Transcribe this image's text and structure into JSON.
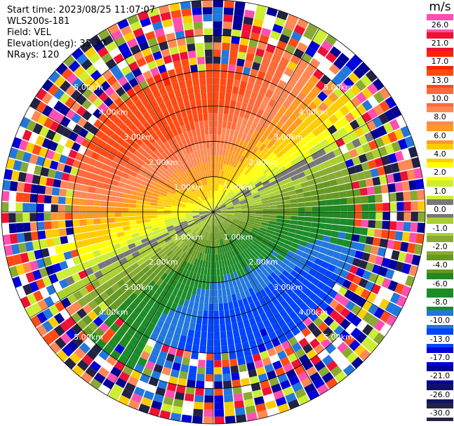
{
  "header": {
    "start_time": "Start time: 2023/08/25 11:07:07",
    "instrument": "WLS200s-181",
    "field": "Field: VEL",
    "elevation": "Elevation(deg): 35.30",
    "nrays": "NRays: 120"
  },
  "chart_data": {
    "type": "heatmap",
    "projection": "polar PPI",
    "field": "VEL",
    "unit": "m/s",
    "n_rays": 120,
    "max_range_km": 6.0,
    "range_rings_km": [
      1,
      2,
      3,
      4,
      5,
      6
    ],
    "ring_labels": [
      "1.00km",
      "2.00km",
      "3.00km",
      "4.00km",
      "5.00km"
    ],
    "colorbar": {
      "title": "m/s",
      "ticks": [
        "26.0",
        "21.0",
        "17.0",
        "13.0",
        "10.0",
        "8.0",
        "6.0",
        "4.0",
        "2.0",
        "1.0",
        "0.0",
        "-1.0",
        "-2.0",
        "-4.0",
        "-6.0",
        "-8.0",
        "-10.0",
        "-13.0",
        "-17.0",
        "-21.0",
        "-26.0",
        "-30.0"
      ],
      "colors": [
        "#ff4fb0",
        "#ee1133",
        "#ff2200",
        "#ff4a14",
        "#ff6a3a",
        "#ff8855",
        "#ff9a25",
        "#ffcc00",
        "#ffff00",
        "#ccee33",
        "#777777",
        "#aad030",
        "#88aa33",
        "#669922",
        "#228822",
        "#1a8c2a",
        "#2277dd",
        "#0044ff",
        "#0000dd",
        "#000099",
        "#111166",
        "#222244"
      ]
    },
    "annotations": "Velocity field shows positive (away) values to the north-northwest up to about 13-17 m/s and negative (toward) values to the south-southeast down to about -8 to -10 m/s; outer gates beyond 4.5 km are noise"
  }
}
